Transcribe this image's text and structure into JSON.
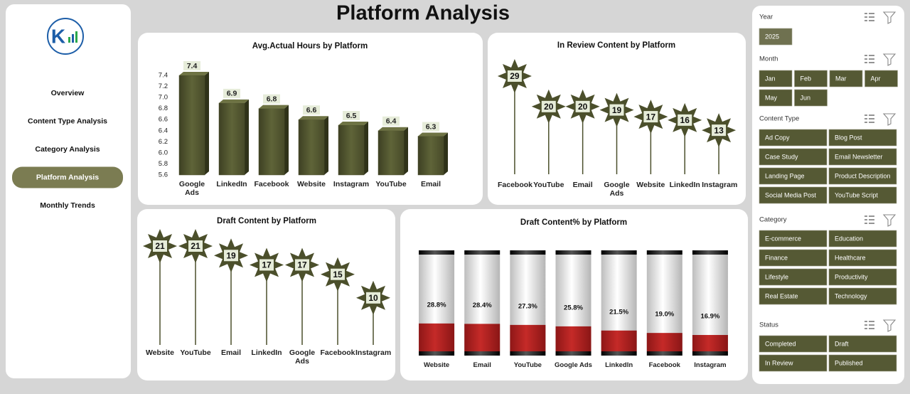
{
  "header": {
    "title": "Platform Analysis"
  },
  "nav": {
    "items": [
      {
        "label": "Overview"
      },
      {
        "label": "Content Type Analysis"
      },
      {
        "label": "Category Analysis"
      },
      {
        "label": "Platform Analysis",
        "active": true
      },
      {
        "label": "Monthly Trends"
      }
    ]
  },
  "slicers": [
    {
      "title": "Year",
      "options": [
        "2025"
      ]
    },
    {
      "title": "Month",
      "options": [
        "Jan",
        "Feb",
        "Mar",
        "Apr",
        "May",
        "Jun"
      ]
    },
    {
      "title": "Content Type",
      "options": [
        "Ad Copy",
        "Blog Post",
        "Case Study",
        "Email Newsletter",
        "Landing Page",
        "Product Description",
        "Social Media Post",
        "YouTube Script"
      ]
    },
    {
      "title": "Category",
      "options": [
        "E-commerce",
        "Education",
        "Finance",
        "Healthcare",
        "Lifestyle",
        "Productivity",
        "Real Estate",
        "Technology"
      ]
    },
    {
      "title": "Status",
      "options": [
        "Completed",
        "Draft",
        "In Review",
        "Published"
      ]
    }
  ],
  "chart_data": [
    {
      "type": "bar",
      "title": "Avg.Actual Hours by Platform",
      "categories": [
        "Google Ads",
        "LinkedIn",
        "Facebook",
        "Website",
        "Instagram",
        "YouTube",
        "Email"
      ],
      "values": [
        7.4,
        6.9,
        6.8,
        6.6,
        6.5,
        6.4,
        6.3
      ],
      "color": "#4b4f2b",
      "ylim": [
        5.6,
        7.4
      ],
      "yticks": [
        5.6,
        5.8,
        {
          "value": 6,
          "label": "6.0"
        },
        6.2,
        6.4,
        6.6,
        6.8,
        {
          "value": 7,
          "label": "7.0"
        },
        7.2,
        7.4
      ]
    },
    {
      "type": "lollipop",
      "title": "In Review Content by Platform",
      "categories": [
        "Facebook",
        "YouTube",
        "Email",
        "Google Ads",
        "Website",
        "LinkedIn",
        "Instagram"
      ],
      "values": [
        29,
        20,
        20,
        19,
        17,
        16,
        13
      ],
      "color": "#4b4f2b"
    },
    {
      "type": "lollipop",
      "title": "Draft Content by Platform",
      "categories": [
        "Website",
        "YouTube",
        "Email",
        "LinkedIn",
        "Google Ads",
        "Facebook",
        "Instagram"
      ],
      "values": [
        21,
        21,
        19,
        17,
        17,
        15,
        10
      ],
      "color": "#4b4f2b"
    },
    {
      "type": "gauge",
      "title": "Draft Content% by Platform",
      "categories": [
        "Website",
        "Email",
        "YouTube",
        "Google Ads",
        "LinkedIn",
        "Facebook",
        "Instagram"
      ],
      "values": [
        28.8,
        28.4,
        27.3,
        25.8,
        21.5,
        19.0,
        16.9
      ],
      "value_labels": [
        "28.8%",
        "28.4%",
        "27.3%",
        "25.8%",
        "21.5%",
        "19.0%",
        "16.9%"
      ],
      "color": "#b3201f",
      "ylim": [
        0,
        100
      ]
    }
  ]
}
